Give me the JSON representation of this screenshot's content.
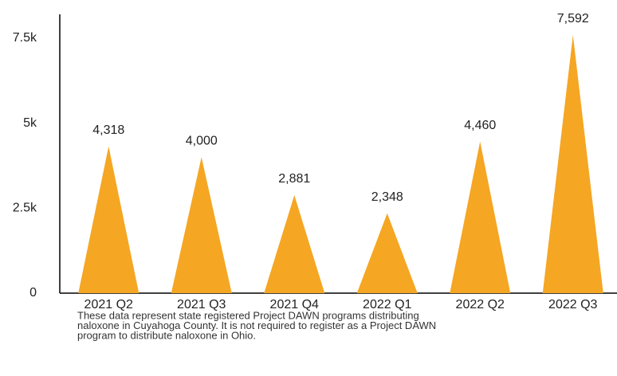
{
  "chart_data": {
    "type": "triangle-bar",
    "categories": [
      "2021 Q2",
      "2021 Q3",
      "2021 Q4",
      "2022 Q1",
      "2022 Q2",
      "2022 Q3"
    ],
    "values": [
      4318,
      4000,
      2881,
      2348,
      4460,
      7592
    ],
    "value_labels": [
      "4,318",
      "4,000",
      "2,881",
      "2,348",
      "4,460",
      "7,592"
    ],
    "color": "#f5a623",
    "ylim": [
      0,
      8200
    ],
    "yticks": [
      0,
      {
        "value": 2500,
        "label": "2.5k"
      },
      {
        "value": 5000,
        "label": "5k"
      },
      {
        "value": 7500,
        "label": "7.5k"
      }
    ],
    "grid": false,
    "note": [
      "These data represent state registered Project DAWN programs distributing",
      "naloxone in Cuyahoga County.  It is not required to register as a Project DAWN",
      "program to distribute naloxone in Ohio."
    ]
  }
}
